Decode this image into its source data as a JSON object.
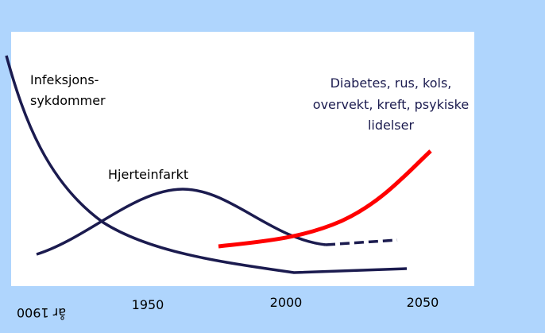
{
  "labels": {
    "infection": [
      "Infeksjons-",
      "sykdommer"
    ],
    "heart": "Hjerteinfarkt",
    "lifestyle": [
      "Diabetes, rus, kols,",
      "overvekt, kreft, psykiske",
      "lidelser"
    ]
  },
  "x_axis": [
    "år 1900",
    "1950",
    "2000",
    "2050"
  ]
}
